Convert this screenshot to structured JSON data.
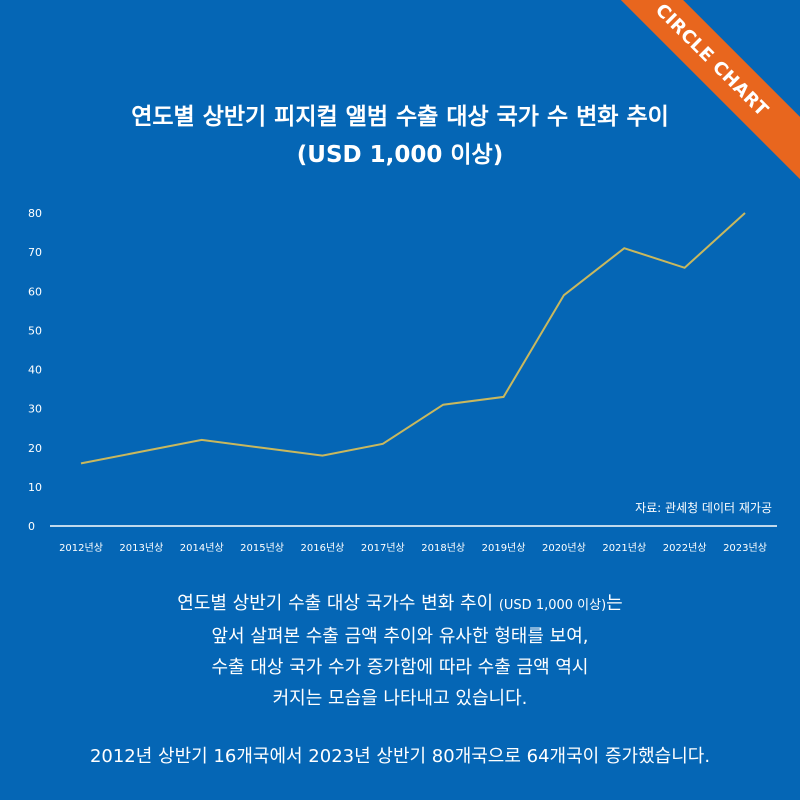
{
  "badge": "CIRCLE CHART",
  "chart_data": {
    "type": "line",
    "title": "연도별 상반기 피지컬 앨범 수출 대상 국가 수 변화 추이",
    "subtitle": "(USD 1,000 이상)",
    "categories": [
      "2012년상",
      "2013년상",
      "2014년상",
      "2015년상",
      "2016년상",
      "2017년상",
      "2018년상",
      "2019년상",
      "2020년상",
      "2021년상",
      "2022년상",
      "2023년상"
    ],
    "series": [
      {
        "name": "수출 대상 국가 수",
        "values": [
          16,
          19,
          22,
          20,
          18,
          21,
          31,
          33,
          59,
          71,
          66,
          80
        ],
        "color": "#c9b85e"
      }
    ],
    "ylim": [
      0,
      80
    ],
    "yticks": [
      0,
      10,
      20,
      30,
      40,
      50,
      60,
      70,
      80
    ],
    "xlabel": "",
    "ylabel": "",
    "grid": false,
    "source": "자료: 관세청 데이터 재가공"
  },
  "description": {
    "line1_main": "연도별 상반기 수출 대상 국가수 변화 추이 ",
    "line1_small": "(USD 1,000 이상)",
    "line1_end": "는",
    "line2": "앞서 살펴본 수출 금액 추이와 유사한 형태를 보여,",
    "line3": "수출 대상 국가 수가 증가함에  따라 수출 금액 역시",
    "line4": "커지는 모습을 나타내고 있습니다."
  },
  "summary": "2012년 상반기 16개국에서 2023년 상반기 80개국으로 64개국이 증가했습니다."
}
